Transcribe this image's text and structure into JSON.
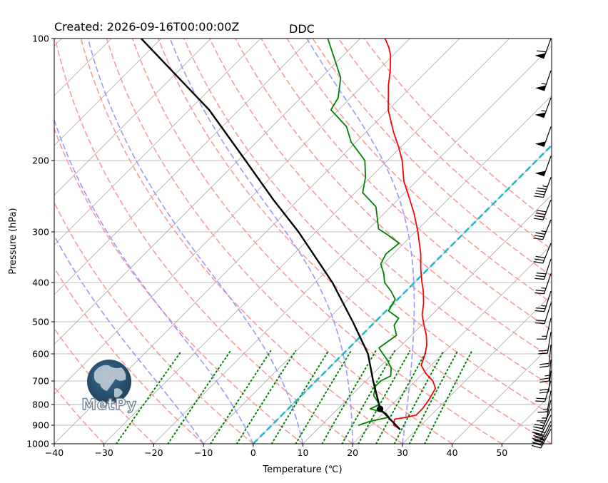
{
  "header": {
    "created_label": "Created: 2026-09-16T00:00:00Z",
    "station": "DDC"
  },
  "logo": {
    "text": "MetPy"
  },
  "chart_data": {
    "type": "skew-t",
    "xlabel": "Temperature (℃)",
    "ylabel": "Pressure (hPa)",
    "xlim": [
      -40,
      60
    ],
    "ylim": [
      1000,
      100
    ],
    "x_ticks": [
      -40,
      -30,
      -20,
      -10,
      0,
      10,
      20,
      30,
      40,
      50
    ],
    "x_tick_labels": [
      "−40",
      "−30",
      "−20",
      "−10",
      "0",
      "10",
      "20",
      "30",
      "40",
      "50"
    ],
    "y_ticks": [
      1000,
      900,
      800,
      700,
      600,
      500,
      400,
      300,
      200,
      100
    ],
    "y_tick_labels": [
      "1000",
      "900",
      "800",
      "700",
      "600",
      "500",
      "400",
      "300",
      "200",
      "100"
    ],
    "grid": true,
    "temperature": [
      [
        920,
        26.5
      ],
      [
        900,
        24.5
      ],
      [
        870,
        23.5
      ],
      [
        860,
        25.5
      ],
      [
        850,
        27.0
      ],
      [
        820,
        27.0
      ],
      [
        780,
        26.5
      ],
      [
        730,
        25.5
      ],
      [
        700,
        23.5
      ],
      [
        670,
        20.5
      ],
      [
        640,
        18.0
      ],
      [
        600,
        16.5
      ],
      [
        570,
        15.0
      ],
      [
        540,
        13.0
      ],
      [
        510,
        10.5
      ],
      [
        480,
        8.0
      ],
      [
        450,
        6.0
      ],
      [
        420,
        3.5
      ],
      [
        400,
        1.5
      ],
      [
        370,
        -1.5
      ],
      [
        340,
        -4.5
      ],
      [
        300,
        -9.5
      ],
      [
        270,
        -14.0
      ],
      [
        245,
        -18.5
      ],
      [
        225,
        -22.5
      ],
      [
        200,
        -27.0
      ],
      [
        185,
        -30.5
      ],
      [
        170,
        -34.5
      ],
      [
        150,
        -40.0
      ],
      [
        130,
        -45.0
      ],
      [
        120,
        -47.5
      ],
      [
        110,
        -50.5
      ],
      [
        105,
        -52.5
      ],
      [
        100,
        -55.0
      ]
    ],
    "dewpoint": [
      [
        900,
        17.5
      ],
      [
        880,
        19.0
      ],
      [
        860,
        22.0
      ],
      [
        840,
        20.5
      ],
      [
        820,
        16.5
      ],
      [
        800,
        17.5
      ],
      [
        760,
        14.5
      ],
      [
        720,
        13.0
      ],
      [
        700,
        13.0
      ],
      [
        680,
        14.0
      ],
      [
        650,
        12.5
      ],
      [
        620,
        10.0
      ],
      [
        600,
        8.0
      ],
      [
        580,
        6.0
      ],
      [
        560,
        6.5
      ],
      [
        540,
        7.0
      ],
      [
        510,
        4.5
      ],
      [
        490,
        4.0
      ],
      [
        470,
        0.5
      ],
      [
        440,
        -0.5
      ],
      [
        420,
        -3.0
      ],
      [
        400,
        -6.0
      ],
      [
        380,
        -8.0
      ],
      [
        360,
        -10.5
      ],
      [
        340,
        -11.5
      ],
      [
        320,
        -11.0
      ],
      [
        305,
        -15.0
      ],
      [
        295,
        -18.0
      ],
      [
        260,
        -23.0
      ],
      [
        240,
        -28.5
      ],
      [
        220,
        -31.0
      ],
      [
        200,
        -34.5
      ],
      [
        180,
        -41.0
      ],
      [
        165,
        -45.0
      ],
      [
        150,
        -51.5
      ],
      [
        140,
        -52.5
      ],
      [
        125,
        -56.0
      ],
      [
        110,
        -62.0
      ],
      [
        100,
        -66.5
      ]
    ],
    "parcel_path": [
      [
        920,
        26.5
      ],
      [
        820,
        18.5
      ],
      [
        700,
        11.5
      ],
      [
        600,
        5.0
      ],
      [
        500,
        -4.5
      ],
      [
        400,
        -16.5
      ],
      [
        300,
        -33.5
      ],
      [
        250,
        -45.0
      ],
      [
        200,
        -58.5
      ],
      [
        150,
        -76.0
      ],
      [
        100,
        -104.0
      ]
    ],
    "lcl": {
      "pressure": 820,
      "temperature": 18.5
    },
    "isotherm_highlight": {
      "temperature": 0,
      "color": "#17becf"
    },
    "dry_adiabats_theta_c": [
      -40,
      -30,
      -20,
      -10,
      0,
      10,
      20,
      30,
      40,
      50,
      60,
      70,
      80,
      90,
      100,
      110,
      120,
      130,
      140
    ],
    "moist_adiabats_start_c": [
      -10,
      0,
      10,
      20,
      30
    ],
    "mixing_ratios_gkg": [
      0.4,
      1,
      2,
      3,
      5,
      7,
      10,
      13,
      16,
      20,
      25,
      30,
      36
    ],
    "wind_barbs": [
      [
        920,
        17,
        32
      ],
      [
        900,
        18,
        36
      ],
      [
        880,
        15,
        30
      ],
      [
        850,
        13,
        26
      ],
      [
        820,
        9,
        21
      ],
      [
        780,
        4,
        17
      ],
      [
        740,
        3,
        17
      ],
      [
        700,
        5,
        17
      ],
      [
        660,
        2,
        19
      ],
      [
        620,
        2,
        23
      ],
      [
        570,
        2,
        21
      ],
      [
        530,
        3,
        19
      ],
      [
        490,
        4,
        17
      ],
      [
        450,
        6,
        19
      ],
      [
        420,
        7,
        22
      ],
      [
        380,
        8,
        24
      ],
      [
        350,
        9,
        27
      ],
      [
        320,
        12,
        30
      ],
      [
        280,
        13,
        32
      ],
      [
        250,
        14,
        36
      ],
      [
        220,
        15,
        40
      ],
      [
        195,
        16,
        45
      ],
      [
        165,
        17,
        48
      ],
      [
        140,
        18,
        50
      ],
      [
        120,
        18,
        53
      ],
      [
        100,
        20,
        55
      ]
    ],
    "colors": {
      "temperature": "#ff0000",
      "dewpoint": "#008000",
      "parcel": "#000000",
      "dry_adiabats": "#ff9999",
      "moist_adiabats": "#9999ff",
      "mixing_ratio": "#008000",
      "skew_lines": "#aaaaaa",
      "isobars": "#aaaaaa"
    }
  }
}
